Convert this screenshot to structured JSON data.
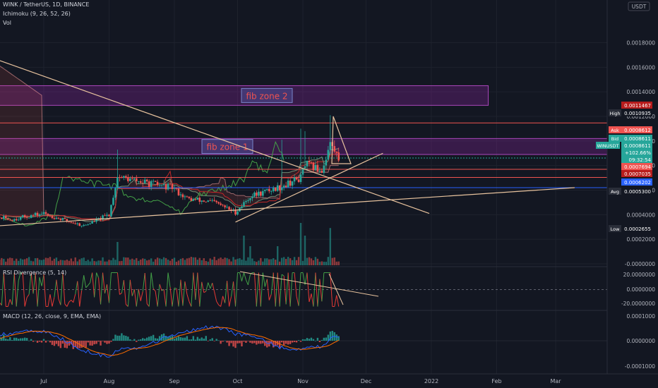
{
  "header": {
    "symbol_line": "WINK / TetherUS, 1D, BINANCE",
    "ichimoku_label": "Ichimoku (9, 26, 52, 26)",
    "vol_label": "Vol"
  },
  "currency_label": "USDT",
  "colors": {
    "bg": "#131722",
    "up": "#26a69a",
    "down": "#ef5350",
    "trendline": "#e8c39e",
    "zone": "#9c27b0",
    "blue_line": "#2962ff",
    "macd_orange": "#ff6d00",
    "grid": "#1e222d"
  },
  "zones": [
    {
      "label": "fib zone 2",
      "y_top": 0.00145,
      "y_bottom": 0.00129,
      "x_start": "2021-06-01",
      "x_end": "2022-01-28"
    },
    {
      "label": "fib zone 1",
      "y_top": 0.00102,
      "y_bottom": 0.00089,
      "x_start": "2021-06-01",
      "x_end": "2022-05-01"
    }
  ],
  "price_labels": [
    {
      "key": "ask",
      "name": "Ask",
      "value": "0.0008612",
      "color": "#ef5350"
    },
    {
      "key": "bid",
      "name": "Bid",
      "value": "0.0008611",
      "color": "#26a69a"
    },
    {
      "key": "sym",
      "name": "WINUSDT",
      "value": "0.0008611",
      "color": "#26a69a"
    },
    {
      "key": "chg",
      "name": "",
      "value": "+102.66%",
      "color": "#26a69a"
    },
    {
      "key": "cd",
      "name": "",
      "value": "09:32:54",
      "color": "#26a69a"
    },
    {
      "key": "l1",
      "name": "",
      "value": "0.0007694",
      "color": "#ef5350"
    },
    {
      "key": "l2",
      "name": "",
      "value": "0.0007035",
      "color": "#b71c1c"
    },
    {
      "key": "l3",
      "name": "",
      "value": "0.0006202",
      "color": "#2962ff"
    },
    {
      "key": "high",
      "name": "High",
      "value": "0.0010935",
      "color": "#131722"
    },
    {
      "key": "red",
      "name": "",
      "value": "0.0011467",
      "color": "#b71c1c"
    },
    {
      "key": "avg",
      "name": "Avg",
      "value": "0.0005300",
      "color": "#131722"
    },
    {
      "key": "low",
      "name": "Low",
      "value": "0.0002655",
      "color": "#131722"
    }
  ],
  "rsi": {
    "label": "RSI Divergence (5, 14)",
    "ticks": [
      "20.0000000",
      "0.0000000",
      "-20.0000000"
    ]
  },
  "macd": {
    "label": "MACD (12, 26, close, 9, EMA, EMA)",
    "ticks": [
      "0.0001000",
      "0.0000000",
      "-0.0001000"
    ]
  },
  "chart_data": {
    "type": "candlestick",
    "x_tick_labels": [
      "Jul",
      "Aug",
      "Sep",
      "Oct",
      "Nov",
      "Dec",
      "2022",
      "Feb",
      "Mar"
    ],
    "x_tick_dates": [
      "2021-07-01",
      "2021-08-01",
      "2021-09-01",
      "2021-10-01",
      "2021-11-01",
      "2021-12-01",
      "2022-01-01",
      "2022-02-01",
      "2022-03-01"
    ],
    "y_ticks": [
      "0.0018000",
      "0.0016000",
      "0.0014000",
      "0.0012000",
      "0.0010000",
      "0.0008000",
      "0.0006000",
      "0.0004000",
      "0.0002000",
      "-0.0000000"
    ],
    "ylim": [
      0.0,
      0.00185
    ],
    "price_anchors": [
      [
        "2021-06-01",
        0.00041
      ],
      [
        "2021-06-15",
        0.00036
      ],
      [
        "2021-07-01",
        0.00041
      ],
      [
        "2021-07-10",
        0.00036
      ],
      [
        "2021-07-20",
        0.00031
      ],
      [
        "2021-08-01",
        0.0004
      ],
      [
        "2021-08-05",
        0.00071
      ],
      [
        "2021-08-15",
        0.00067
      ],
      [
        "2021-08-31",
        0.00062
      ],
      [
        "2021-09-07",
        0.00053
      ],
      [
        "2021-09-20",
        0.0005
      ],
      [
        "2021-09-30",
        0.00042
      ],
      [
        "2021-10-07",
        0.00055
      ],
      [
        "2021-10-20",
        0.00062
      ],
      [
        "2021-10-31",
        0.0007
      ],
      [
        "2021-11-02",
        0.00081
      ],
      [
        "2021-11-10",
        0.00076
      ],
      [
        "2021-11-14",
        0.00098
      ],
      [
        "2021-11-18",
        0.00086
      ]
    ],
    "volume_peaks": [
      [
        "2021-08-05",
        0.55
      ],
      [
        "2021-10-04",
        0.7
      ],
      [
        "2021-10-07",
        0.45
      ],
      [
        "2021-10-20",
        0.45
      ],
      [
        "2021-10-31",
        1.0
      ],
      [
        "2021-11-02",
        0.7
      ],
      [
        "2021-11-14",
        0.88
      ]
    ],
    "horizontal_levels": [
      {
        "value": 0.0011467,
        "color": "#ef5350"
      },
      {
        "value": 0.0008611,
        "color": "#26a69a"
      },
      {
        "value": 0.0007694,
        "color": "#ef5350"
      },
      {
        "value": 0.0007035,
        "color": "#ef5350"
      },
      {
        "value": 0.0006202,
        "color": "#2962ff"
      }
    ],
    "trendlines": [
      {
        "from": [
          "2021-06-01",
          0.00171
        ],
        "to": [
          "2021-12-31",
          0.00041
        ]
      },
      {
        "from": [
          "2021-06-01",
          0.0003
        ],
        "to": [
          "2022-03-10",
          0.00062
        ]
      },
      {
        "from": [
          "2021-09-30",
          0.00034
        ],
        "to": [
          "2021-12-09",
          0.0009
        ]
      }
    ]
  }
}
